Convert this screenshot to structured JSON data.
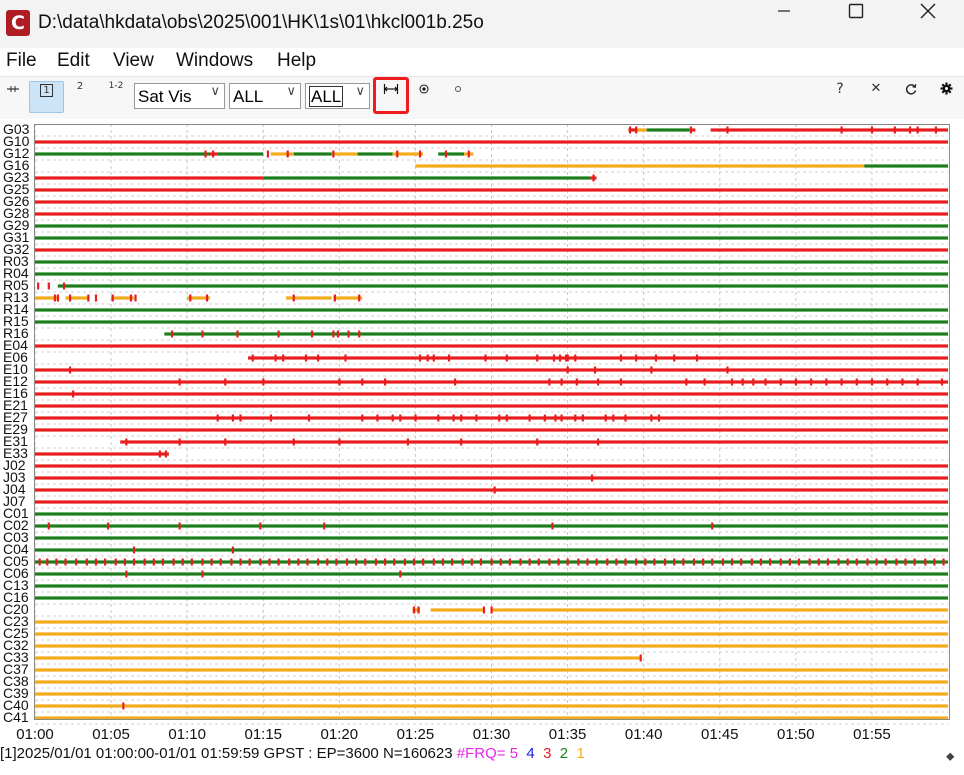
{
  "window": {
    "title": "D:\\data\\hkdata\\obs\\2025\\001\\HK\\1s\\01\\hkcl001b.25o",
    "app_icon": "C",
    "controls": [
      "minimize-icon",
      "maximize-icon",
      "close-icon"
    ]
  },
  "menu": [
    "File",
    "Edit",
    "View",
    "Windows",
    "Help"
  ],
  "toolbar": {
    "freq1": "1",
    "freq2": "2",
    "freq12": "1-2",
    "plot_type": "Sat Vis",
    "sat_filter": "ALL",
    "obs_filter": "ALL",
    "icons": [
      "drag-handle-icon",
      "fit-time-range-icon",
      "center-icon",
      "dot-icon",
      "help-icon",
      "clear-icon",
      "reload-icon",
      "settings-icon"
    ],
    "help_label": "?",
    "clear_label": "✕"
  },
  "colors": {
    "red": "#e81e1e",
    "green": "#1b7d1b",
    "orange": "#f4ab1a",
    "accent_highlight": "#ee1c1c",
    "freq5": "#e628e6",
    "freq4": "#1c1ce0",
    "freq3": "#e81e1e",
    "freq2": "#1b7d1b",
    "freq1": "#f4ab1a"
  },
  "chart_data": {
    "type": "timeline",
    "x_unit": "time (GPST)",
    "xlim": [
      "01:00",
      "01:59:59"
    ],
    "xticks": [
      "01:00",
      "01:05",
      "01:10",
      "01:15",
      "01:20",
      "01:25",
      "01:30",
      "01:35",
      "01:40",
      "01:45",
      "01:50",
      "01:55"
    ],
    "grid": true,
    "satellites": [
      {
        "name": "G03",
        "segments": [
          [
            39.0,
            39.6,
            "red"
          ],
          [
            39.6,
            40.2,
            "orange"
          ],
          [
            40.2,
            43.0,
            "green"
          ],
          [
            43.0,
            43.4,
            "red"
          ],
          [
            44.4,
            60.0,
            "red"
          ]
        ]
      },
      {
        "name": "G10",
        "segments": [
          [
            0,
            60,
            "red"
          ]
        ]
      },
      {
        "name": "G12",
        "segments": [
          [
            0,
            11.5,
            "green"
          ],
          [
            11.5,
            12.0,
            "red"
          ],
          [
            12.0,
            15.0,
            "green"
          ],
          [
            15.5,
            17.0,
            "orange"
          ],
          [
            17.0,
            19.5,
            "green"
          ],
          [
            19.5,
            21.2,
            "orange"
          ],
          [
            21.2,
            23.5,
            "green"
          ],
          [
            23.5,
            25.5,
            "orange"
          ],
          [
            26.5,
            28.2,
            "green"
          ],
          [
            28.2,
            28.8,
            "orange"
          ]
        ]
      },
      {
        "name": "G16",
        "segments": [
          [
            25.0,
            54.5,
            "orange"
          ],
          [
            54.5,
            60.0,
            "green"
          ]
        ]
      },
      {
        "name": "G23",
        "segments": [
          [
            0,
            15.0,
            "red"
          ],
          [
            15.0,
            36.5,
            "green"
          ],
          [
            36.5,
            36.9,
            "red"
          ]
        ]
      },
      {
        "name": "G25",
        "segments": [
          [
            0,
            60,
            "red"
          ]
        ]
      },
      {
        "name": "G26",
        "segments": [
          [
            0,
            60,
            "red"
          ]
        ]
      },
      {
        "name": "G28",
        "segments": [
          [
            0,
            60,
            "red"
          ]
        ]
      },
      {
        "name": "G29",
        "segments": [
          [
            0,
            60,
            "green"
          ]
        ]
      },
      {
        "name": "G31",
        "segments": [
          [
            0,
            60,
            "green"
          ]
        ]
      },
      {
        "name": "G32",
        "segments": [
          [
            0,
            60,
            "red"
          ]
        ]
      },
      {
        "name": "R03",
        "segments": [
          [
            0,
            60,
            "green"
          ]
        ]
      },
      {
        "name": "R04",
        "segments": [
          [
            0,
            60,
            "green"
          ]
        ]
      },
      {
        "name": "R05",
        "segments": [
          [
            1.5,
            60,
            "green"
          ]
        ]
      },
      {
        "name": "R13",
        "segments": [
          [
            0,
            1.6,
            "orange"
          ],
          [
            2.0,
            3.5,
            "orange"
          ],
          [
            5.0,
            6.5,
            "orange"
          ],
          [
            10.0,
            11.5,
            "orange"
          ],
          [
            16.5,
            19.5,
            "orange"
          ],
          [
            19.6,
            21.5,
            "orange"
          ]
        ]
      },
      {
        "name": "R14",
        "segments": [
          [
            0,
            60,
            "green"
          ]
        ]
      },
      {
        "name": "R15",
        "segments": [
          [
            0,
            60,
            "green"
          ]
        ]
      },
      {
        "name": "R16",
        "segments": [
          [
            8.5,
            60,
            "green"
          ]
        ]
      },
      {
        "name": "E04",
        "segments": [
          [
            0,
            60,
            "red"
          ]
        ]
      },
      {
        "name": "E06",
        "segments": [
          [
            14.0,
            60,
            "red"
          ]
        ]
      },
      {
        "name": "E10",
        "segments": [
          [
            0,
            60,
            "red"
          ]
        ]
      },
      {
        "name": "E12",
        "segments": [
          [
            0,
            60,
            "red"
          ]
        ]
      },
      {
        "name": "E16",
        "segments": [
          [
            0,
            60,
            "red"
          ]
        ]
      },
      {
        "name": "E21",
        "segments": [
          [
            0,
            60,
            "red"
          ]
        ]
      },
      {
        "name": "E27",
        "segments": [
          [
            0,
            60,
            "red"
          ]
        ]
      },
      {
        "name": "E29",
        "segments": [
          [
            0,
            60,
            "red"
          ]
        ]
      },
      {
        "name": "E31",
        "segments": [
          [
            5.6,
            60,
            "red"
          ]
        ]
      },
      {
        "name": "E33",
        "segments": [
          [
            0,
            8.8,
            "red"
          ]
        ]
      },
      {
        "name": "J02",
        "segments": [
          [
            0,
            60,
            "red"
          ]
        ]
      },
      {
        "name": "J03",
        "segments": [
          [
            0,
            60,
            "red"
          ]
        ]
      },
      {
        "name": "J04",
        "segments": [
          [
            0,
            60,
            "red"
          ]
        ]
      },
      {
        "name": "J07",
        "segments": [
          [
            0,
            60,
            "red"
          ]
        ]
      },
      {
        "name": "C01",
        "segments": [
          [
            0,
            60,
            "green"
          ]
        ]
      },
      {
        "name": "C02",
        "segments": [
          [
            0,
            60,
            "green"
          ]
        ]
      },
      {
        "name": "C03",
        "segments": [
          [
            0,
            60,
            "green"
          ]
        ]
      },
      {
        "name": "C04",
        "segments": [
          [
            0,
            60,
            "green"
          ]
        ]
      },
      {
        "name": "C05",
        "segments": [
          [
            0,
            60,
            "green"
          ]
        ]
      },
      {
        "name": "C06",
        "segments": [
          [
            0,
            60,
            "green"
          ]
        ]
      },
      {
        "name": "C13",
        "segments": [
          [
            0,
            60,
            "green"
          ]
        ]
      },
      {
        "name": "C16",
        "segments": [
          [
            0,
            60,
            "green"
          ]
        ]
      },
      {
        "name": "C20",
        "segments": [
          [
            24.8,
            25.3,
            "orange"
          ],
          [
            26.0,
            29.5,
            "orange"
          ],
          [
            30.0,
            60.0,
            "orange"
          ]
        ]
      },
      {
        "name": "C23",
        "segments": [
          [
            0,
            60,
            "orange"
          ]
        ]
      },
      {
        "name": "C25",
        "segments": [
          [
            0,
            60,
            "orange"
          ]
        ]
      },
      {
        "name": "C32",
        "segments": [
          [
            0,
            60,
            "orange"
          ]
        ]
      },
      {
        "name": "C33",
        "segments": [
          [
            0,
            39.8,
            "orange"
          ]
        ]
      },
      {
        "name": "C37",
        "segments": [
          [
            0,
            60,
            "orange"
          ]
        ]
      },
      {
        "name": "C38",
        "segments": [
          [
            0,
            60,
            "orange"
          ]
        ]
      },
      {
        "name": "C39",
        "segments": [
          [
            0,
            60,
            "orange"
          ]
        ]
      },
      {
        "name": "C40",
        "segments": [
          [
            0,
            60,
            "orange"
          ]
        ]
      },
      {
        "name": "C41",
        "segments": [
          [
            0,
            60,
            "orange"
          ]
        ]
      }
    ],
    "slips": [
      {
        "sat": "G03",
        "t": [
          39.1,
          39.5,
          43.1,
          45.5,
          53.0,
          55.0,
          56.5,
          57.5,
          58.0,
          59.2
        ]
      },
      {
        "sat": "G12",
        "t": [
          11.2,
          11.7,
          15.3,
          16.6,
          19.6,
          23.8,
          25.3,
          27.0,
          28.5
        ]
      },
      {
        "sat": "G23",
        "t": [
          36.7
        ]
      },
      {
        "sat": "R05",
        "t": [
          0.2,
          0.9,
          1.9
        ]
      },
      {
        "sat": "R13",
        "t": [
          1.3,
          1.5,
          2.3,
          3.5,
          4.0,
          5.1,
          6.3,
          6.6,
          10.2,
          11.3,
          17.0,
          19.7,
          21.3
        ]
      },
      {
        "sat": "R16",
        "t": [
          9.0,
          11.0,
          13.3,
          16.0,
          18.2,
          19.6,
          19.9,
          20.6,
          21.3
        ]
      },
      {
        "sat": "E06",
        "t": [
          14.3,
          15.8,
          16.3,
          17.8,
          18.6,
          20.4,
          25.3,
          25.8,
          26.2,
          27.2,
          29.6,
          31.0,
          33.0,
          34.1,
          34.5,
          34.9,
          35.0,
          35.5,
          38.5,
          39.5,
          40.8,
          42.0,
          43.5
        ]
      },
      {
        "sat": "E10",
        "t": [
          2.3,
          35.0,
          36.8,
          40.5,
          45.5
        ]
      },
      {
        "sat": "E12",
        "t": [
          9.5,
          12.5,
          15.0,
          20.0,
          21.5,
          23.0,
          27.6,
          33.8,
          34.6,
          35.6,
          37.0,
          38.5,
          42.8,
          44.0,
          45.8,
          46.5,
          47.2,
          48.0,
          49.0,
          50.0,
          51.0,
          52.0,
          53.0,
          54.0,
          55.0,
          56.0,
          57.0,
          58.0,
          59.6
        ]
      },
      {
        "sat": "E16",
        "t": [
          2.5
        ]
      },
      {
        "sat": "E27",
        "t": [
          12.0,
          13.0,
          13.5,
          15.5,
          18.0,
          21.5,
          22.5,
          23.5,
          24.0,
          25.0,
          26.5,
          27.5,
          28.0,
          29.0,
          30.5,
          31.0,
          32.5,
          33.5,
          34.2,
          34.6,
          35.5,
          36.0,
          37.5,
          38.0,
          38.8,
          40.5,
          41.0
        ]
      },
      {
        "sat": "E31",
        "t": [
          6.0,
          9.5,
          12.5,
          17.0,
          20.0,
          24.5,
          28.0,
          33.0,
          37.0
        ]
      },
      {
        "sat": "E33",
        "t": [
          8.2,
          8.6
        ]
      },
      {
        "sat": "J03",
        "t": [
          36.6
        ]
      },
      {
        "sat": "J04",
        "t": [
          30.2
        ]
      },
      {
        "sat": "C02",
        "t": [
          0.9,
          4.8,
          9.5,
          14.8,
          19.0,
          34.0,
          44.5
        ]
      },
      {
        "sat": "C04",
        "t": [
          6.5,
          13.0
        ]
      },
      {
        "sat": "C05",
        "t": [
          0.3,
          0.8,
          1.4,
          2.0,
          2.7,
          3.4,
          4.0,
          4.6,
          5.3,
          5.9,
          6.5,
          7.2,
          7.8,
          8.4,
          9.1,
          9.7,
          10.3,
          11.0,
          11.6,
          12.2,
          12.9,
          13.5,
          14.1,
          14.8,
          15.4,
          16.0,
          16.7,
          17.3,
          17.9,
          18.6,
          19.2,
          19.8,
          20.5,
          21.1,
          21.7,
          22.4,
          23.0,
          23.6,
          24.3,
          24.9,
          25.5,
          26.2,
          26.8,
          27.4,
          28.1,
          28.7,
          29.3,
          30.0,
          30.6,
          31.2,
          31.9,
          32.5,
          33.1,
          33.8,
          34.4,
          35.0,
          35.7,
          36.3,
          36.9,
          37.6,
          38.2,
          38.8,
          39.5,
          40.1,
          40.7,
          41.4,
          42.0,
          42.6,
          43.3,
          43.9,
          44.5,
          45.2,
          45.8,
          46.4,
          47.1,
          47.7,
          48.3,
          49.0,
          49.6,
          50.2,
          50.9,
          51.5,
          52.1,
          52.8,
          53.4,
          54.0,
          54.7,
          55.3,
          55.9,
          56.6,
          57.2,
          57.8,
          58.5,
          59.1,
          59.7
        ]
      },
      {
        "sat": "C06",
        "t": [
          6.0,
          11.0,
          24.0
        ]
      },
      {
        "sat": "C20",
        "t": [
          24.9,
          25.2,
          29.5,
          30.0
        ]
      },
      {
        "sat": "C33",
        "t": [
          39.8
        ]
      },
      {
        "sat": "C40",
        "t": [
          5.8
        ]
      }
    ]
  },
  "status": {
    "prefix": "[1]2025/01/01 01:00:00-01/01 01:59:59 GPST : EP=3600 N=160623 ",
    "frq_label": "#FRQ=",
    "frq5": "5",
    "frq4": "4",
    "frq3": "3",
    "frq2": "2",
    "frq1": "1"
  }
}
